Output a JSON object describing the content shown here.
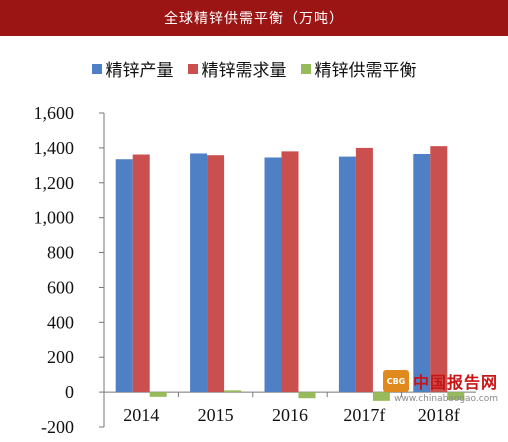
{
  "header": {
    "title": "全球精锌供需平衡（万吨）"
  },
  "watermark": {
    "logo_text": "CBG",
    "name": "中国报告网",
    "url": "www.chinabaogao.com"
  },
  "colors": {
    "title_bg": "#9c1515",
    "series": [
      "#4f7fc4",
      "#c9504e",
      "#97bb5a"
    ]
  },
  "chart_data": {
    "type": "bar",
    "title": "全球精锌供需平衡（万吨）",
    "xlabel": "",
    "ylabel": "",
    "categories": [
      "2014",
      "2015",
      "2016",
      "2017f",
      "2018f"
    ],
    "series": [
      {
        "name": "精锌产量",
        "color": "#4f7fc4",
        "values": [
          1335,
          1368,
          1345,
          1350,
          1365
        ]
      },
      {
        "name": "精锌需求量",
        "color": "#c9504e",
        "values": [
          1362,
          1358,
          1380,
          1400,
          1410
        ]
      },
      {
        "name": "精锌供需平衡",
        "color": "#97bb5a",
        "values": [
          -27,
          10,
          -35,
          -50,
          -45
        ]
      }
    ],
    "ylim": [
      -200,
      1600
    ],
    "yticks": [
      -200,
      0,
      200,
      400,
      600,
      800,
      1000,
      1200,
      1400,
      1600
    ],
    "ytick_labels": [
      "-200",
      "0",
      "200",
      "400",
      "600",
      "800",
      "1,000",
      "1,200",
      "1,400",
      "1,600"
    ],
    "grid": false,
    "legend_position": "top"
  }
}
